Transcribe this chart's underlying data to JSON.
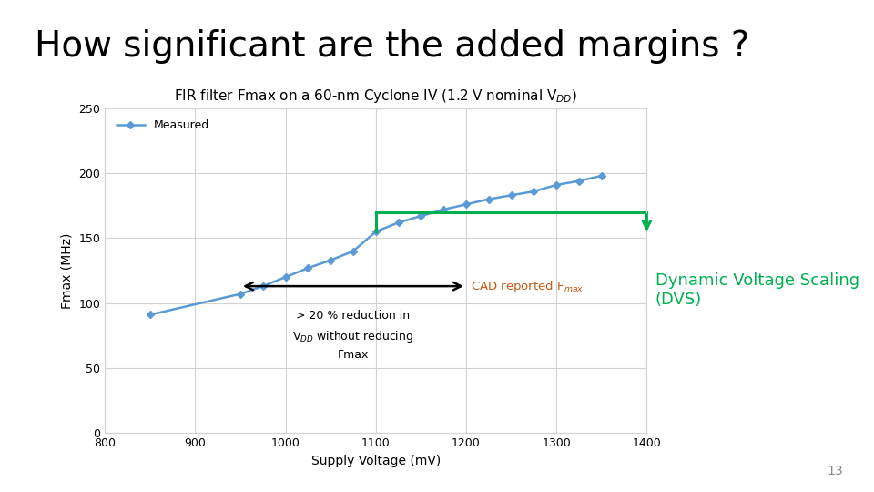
{
  "title": "How significant are the added margins ?",
  "chart_title": "FIR filter Fmax on a 60-nm Cyclone IV (1.2 V nominal V$_{DD}$)",
  "xlabel": "Supply Voltage (mV)",
  "ylabel": "Fmax (MHz)",
  "xlim": [
    800,
    1400
  ],
  "ylim": [
    0,
    250
  ],
  "xticks": [
    800,
    900,
    1000,
    1100,
    1200,
    1300,
    1400
  ],
  "yticks": [
    0,
    50,
    100,
    150,
    200,
    250
  ],
  "x_data": [
    850,
    950,
    975,
    1000,
    1025,
    1050,
    1075,
    1100,
    1125,
    1150,
    1175,
    1200,
    1225,
    1250,
    1275,
    1300,
    1325,
    1350
  ],
  "y_data": [
    91,
    107,
    113,
    120,
    127,
    133,
    140,
    155,
    162,
    167,
    172,
    176,
    180,
    183,
    186,
    191,
    194,
    198
  ],
  "line_color": "#5B9BD5",
  "line_marker": "D",
  "marker_size": 4,
  "legend_label": "Measured",
  "cad_color": "#C55A11",
  "green_line_color": "#00B050",
  "dvs_text": "Dynamic Voltage Scaling\n(DVS)",
  "dvs_text_color": "#00B050",
  "separator_color": "#4472C4",
  "background_color": "#FFFFFF",
  "page_number": "13",
  "title_fontsize": 28,
  "chart_title_fontsize": 11
}
